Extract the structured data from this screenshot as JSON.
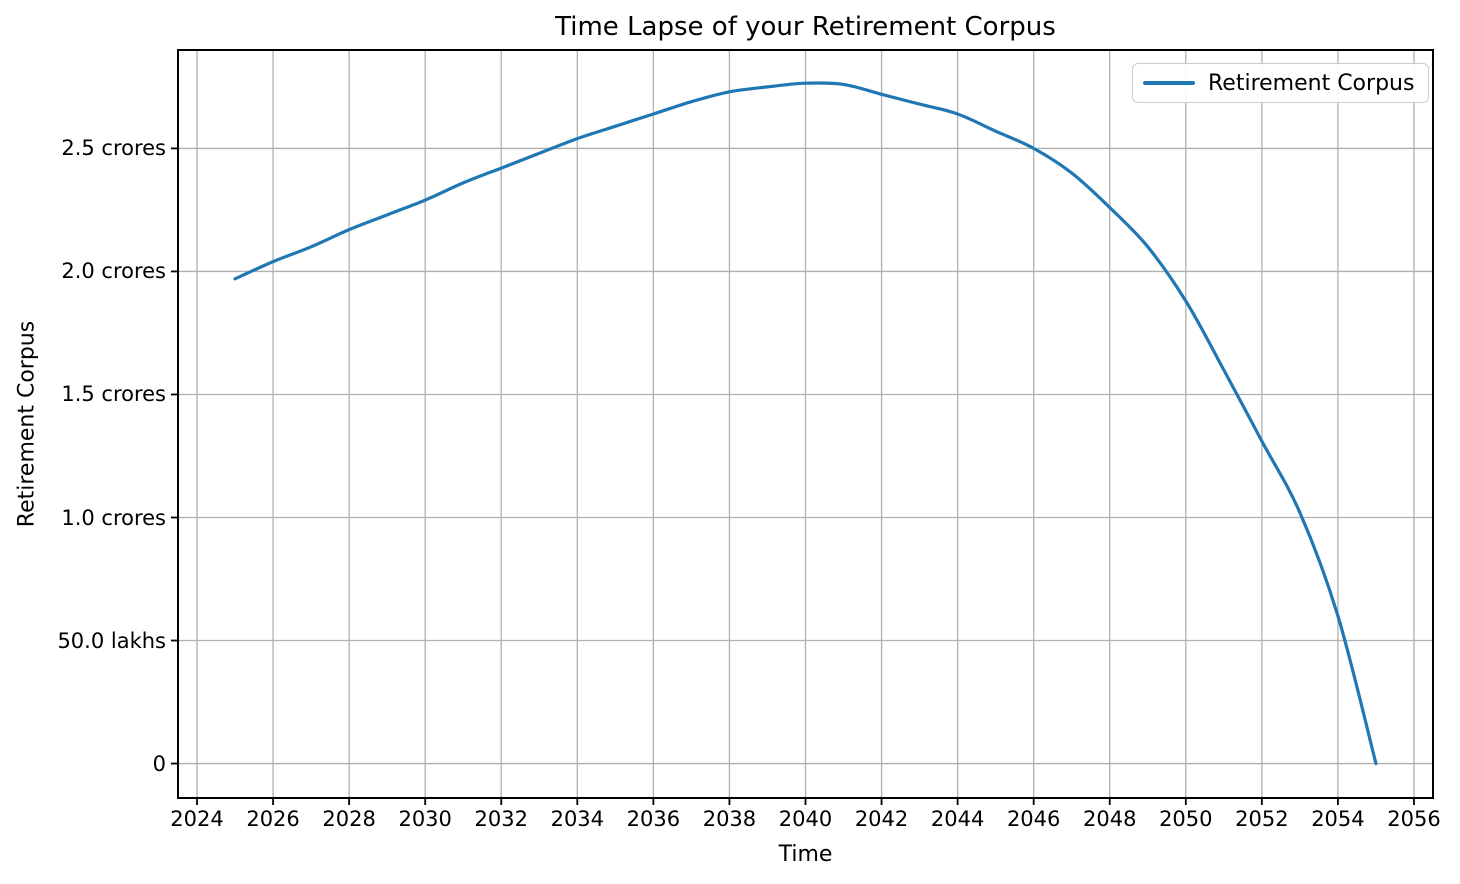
{
  "chart_data": {
    "type": "line",
    "title": "Time Lapse of your Retirement Corpus",
    "xlabel": "Time",
    "ylabel": "Retirement Corpus",
    "legend": {
      "position": "upper right",
      "entries": [
        {
          "label": "Retirement Corpus",
          "color": "#1f77b4"
        }
      ]
    },
    "x": [
      2025,
      2026,
      2027,
      2028,
      2029,
      2030,
      2031,
      2032,
      2033,
      2034,
      2035,
      2036,
      2037,
      2038,
      2039,
      2040,
      2041,
      2042,
      2043,
      2044,
      2045,
      2046,
      2047,
      2048,
      2049,
      2050,
      2051,
      2052,
      2053,
      2054,
      2055
    ],
    "series": [
      {
        "name": "Retirement Corpus",
        "unit": "crores",
        "values": [
          1.97,
          2.04,
          2.1,
          2.17,
          2.23,
          2.29,
          2.36,
          2.42,
          2.48,
          2.54,
          2.59,
          2.64,
          2.69,
          2.73,
          2.75,
          2.765,
          2.76,
          2.72,
          2.68,
          2.64,
          2.57,
          2.5,
          2.4,
          2.26,
          2.1,
          1.88,
          1.6,
          1.31,
          1.02,
          0.6,
          0.0
        ]
      }
    ],
    "x_ticks": [
      2024,
      2026,
      2028,
      2030,
      2032,
      2034,
      2036,
      2038,
      2040,
      2042,
      2044,
      2046,
      2048,
      2050,
      2052,
      2054,
      2056
    ],
    "y_ticks": [
      {
        "value": 0,
        "label": "0"
      },
      {
        "value": 0.5,
        "label": "50.0 lakhs"
      },
      {
        "value": 1,
        "label": "1.0 crores"
      },
      {
        "value": 1.5,
        "label": "1.5 crores"
      },
      {
        "value": 2,
        "label": "2.0 crores"
      },
      {
        "value": 2.5,
        "label": "2.5 crores"
      }
    ],
    "xlim": [
      2023.5,
      2056.5
    ],
    "ylim": [
      -0.14,
      2.9
    ],
    "grid": true,
    "colors": {
      "line": "#1f77b4",
      "grid": "#b0b0b0",
      "spine": "#000000",
      "text": "#000000",
      "background": "#ffffff",
      "legend_border": "#cccccc"
    }
  }
}
